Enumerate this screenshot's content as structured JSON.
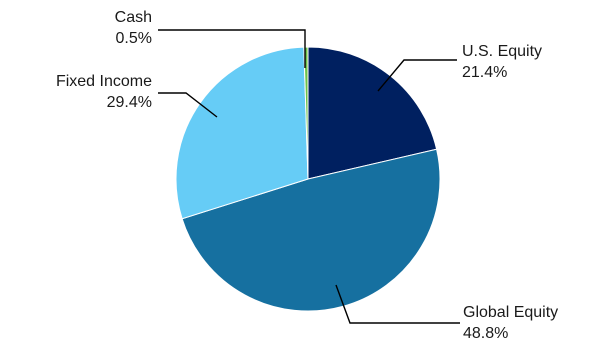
{
  "chart_data": {
    "type": "pie",
    "title": "",
    "slices": [
      {
        "name": "U.S. Equity",
        "label": "U.S. Equity",
        "value_text": "21.4%",
        "value": 21.4,
        "color": "#002060"
      },
      {
        "name": "Global Equity",
        "label": "Global Equity",
        "value_text": "48.8%",
        "value": 48.8,
        "color": "#1670A0"
      },
      {
        "name": "Fixed Income",
        "label": "Fixed Income",
        "value_text": "29.4%",
        "value": 29.4,
        "color": "#66CCF6"
      },
      {
        "name": "Cash",
        "label": "Cash",
        "value_text": "0.5%",
        "value": 0.5,
        "color": "#6FC24A"
      }
    ],
    "start_angle_deg": 0,
    "direction": "clockwise",
    "legend": "none",
    "labels": "outside with leader lines"
  }
}
